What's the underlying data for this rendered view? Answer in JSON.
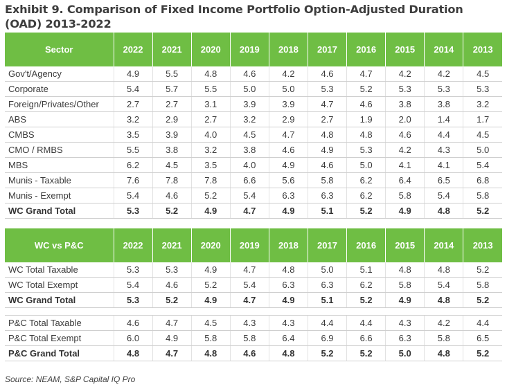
{
  "title": "Exhibit 9. Comparison of Fixed Income Portfolio Option-Adjusted Duration (OAD) 2013-2022",
  "years": [
    "2022",
    "2021",
    "2020",
    "2019",
    "2018",
    "2017",
    "2016",
    "2015",
    "2014",
    "2013"
  ],
  "table1": {
    "header": "Sector",
    "rows": [
      {
        "label": "Gov't/Agency",
        "values": [
          "4.9",
          "5.5",
          "4.8",
          "4.6",
          "4.2",
          "4.6",
          "4.7",
          "4.2",
          "4.2",
          "4.5"
        ]
      },
      {
        "label": "Corporate",
        "values": [
          "5.4",
          "5.7",
          "5.5",
          "5.0",
          "5.0",
          "5.3",
          "5.2",
          "5.3",
          "5.3",
          "5.3"
        ]
      },
      {
        "label": "Foreign/Privates/Other",
        "values": [
          "2.7",
          "2.7",
          "3.1",
          "3.9",
          "3.9",
          "4.7",
          "4.6",
          "3.8",
          "3.8",
          "3.2"
        ]
      },
      {
        "label": "ABS",
        "values": [
          "3.2",
          "2.9",
          "2.7",
          "3.2",
          "2.9",
          "2.7",
          "1.9",
          "2.0",
          "1.4",
          "1.7"
        ]
      },
      {
        "label": "CMBS",
        "values": [
          "3.5",
          "3.9",
          "4.0",
          "4.5",
          "4.7",
          "4.8",
          "4.8",
          "4.6",
          "4.4",
          "4.5"
        ]
      },
      {
        "label": "CMO / RMBS",
        "values": [
          "5.5",
          "3.8",
          "3.2",
          "3.8",
          "4.6",
          "4.9",
          "5.3",
          "4.2",
          "4.3",
          "5.0"
        ]
      },
      {
        "label": "MBS",
        "values": [
          "6.2",
          "4.5",
          "3.5",
          "4.0",
          "4.9",
          "4.6",
          "5.0",
          "4.1",
          "4.1",
          "5.4"
        ]
      },
      {
        "label": "Munis - Taxable",
        "values": [
          "7.6",
          "7.8",
          "7.8",
          "6.6",
          "5.6",
          "5.8",
          "6.2",
          "6.4",
          "6.5",
          "6.8"
        ]
      },
      {
        "label": "Munis - Exempt",
        "values": [
          "5.4",
          "4.6",
          "5.2",
          "5.4",
          "6.3",
          "6.3",
          "6.2",
          "5.8",
          "5.4",
          "5.8"
        ]
      },
      {
        "label": "WC Grand Total",
        "values": [
          "5.3",
          "5.2",
          "4.9",
          "4.7",
          "4.9",
          "5.1",
          "5.2",
          "4.9",
          "4.8",
          "5.2"
        ]
      }
    ]
  },
  "table2": {
    "header": "WC vs P&C",
    "rows": [
      {
        "label": "WC Total Taxable",
        "values": [
          "5.3",
          "5.3",
          "4.9",
          "4.7",
          "4.8",
          "5.0",
          "5.1",
          "4.8",
          "4.8",
          "5.2"
        ]
      },
      {
        "label": "WC Total Exempt",
        "values": [
          "5.4",
          "4.6",
          "5.2",
          "5.4",
          "6.3",
          "6.3",
          "6.2",
          "5.8",
          "5.4",
          "5.8"
        ]
      },
      {
        "label": "WC Grand Total",
        "values": [
          "5.3",
          "5.2",
          "4.9",
          "4.7",
          "4.9",
          "5.1",
          "5.2",
          "4.9",
          "4.8",
          "5.2"
        ]
      },
      {
        "label": "P&C Total Taxable",
        "values": [
          "4.6",
          "4.7",
          "4.5",
          "4.3",
          "4.3",
          "4.4",
          "4.4",
          "4.3",
          "4.2",
          "4.4"
        ]
      },
      {
        "label": "P&C Total Exempt",
        "values": [
          "6.0",
          "4.9",
          "5.8",
          "5.8",
          "6.4",
          "6.9",
          "6.6",
          "6.3",
          "5.8",
          "6.5"
        ]
      },
      {
        "label": "P&C Grand Total",
        "values": [
          "4.8",
          "4.7",
          "4.8",
          "4.6",
          "4.8",
          "5.2",
          "5.2",
          "5.0",
          "4.8",
          "5.2"
        ]
      }
    ]
  },
  "source": "Source: NEAM, S&P Capital IQ Pro"
}
